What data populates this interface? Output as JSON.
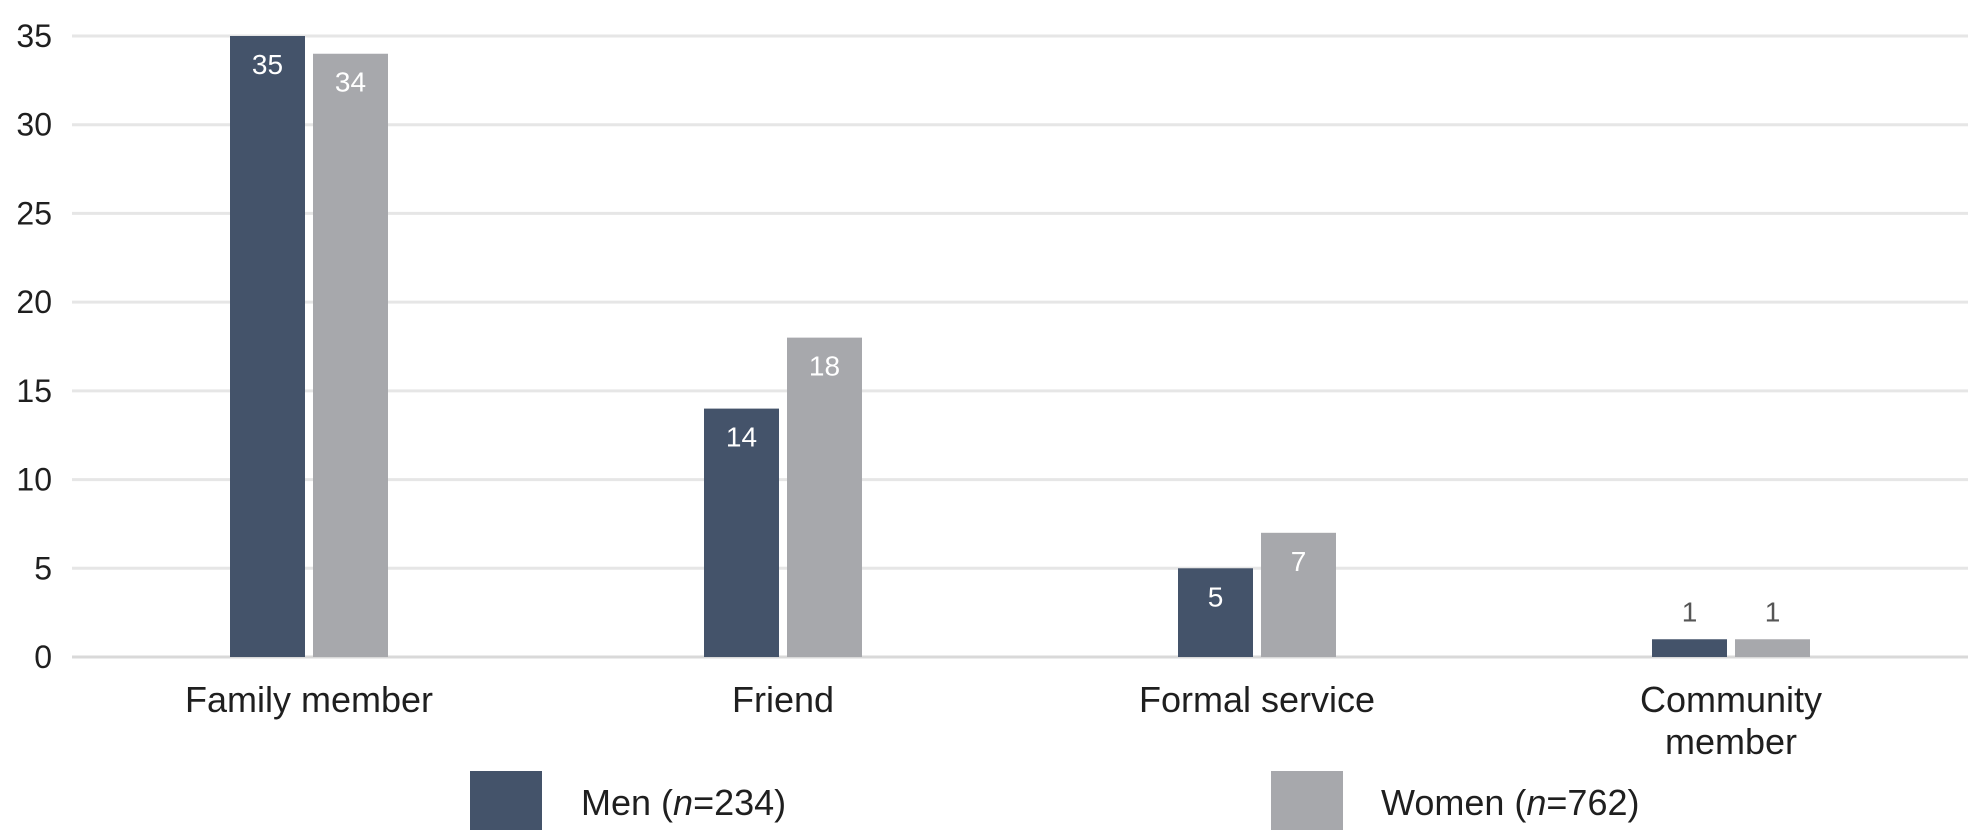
{
  "chart_data": {
    "type": "bar",
    "title": "",
    "xlabel": "",
    "ylabel": "",
    "ylim": [
      0,
      35
    ],
    "yticks": [
      0,
      5,
      10,
      15,
      20,
      25,
      30,
      35
    ],
    "grid": true,
    "legend_position": "bottom",
    "categories": [
      [
        "Family member"
      ],
      [
        "Friend"
      ],
      [
        "Formal service"
      ],
      [
        "Community",
        "member"
      ]
    ],
    "series": [
      {
        "name": "Men",
        "n_label": "n",
        "n_value": "=234)",
        "prefix": "Men (",
        "values": [
          35,
          14,
          5,
          1
        ],
        "color": "#44536a"
      },
      {
        "name": "Women",
        "n_label": "n",
        "n_value": "=762)",
        "prefix": "Women (",
        "values": [
          34,
          18,
          7,
          1
        ],
        "color": "#a7a8ac"
      }
    ],
    "colors": {
      "grid": "#e6e6e6",
      "axis": "#d9d9d9",
      "text": "#1f1f1f",
      "label_inside": "#ffffff",
      "label_outside": "#555555"
    }
  }
}
